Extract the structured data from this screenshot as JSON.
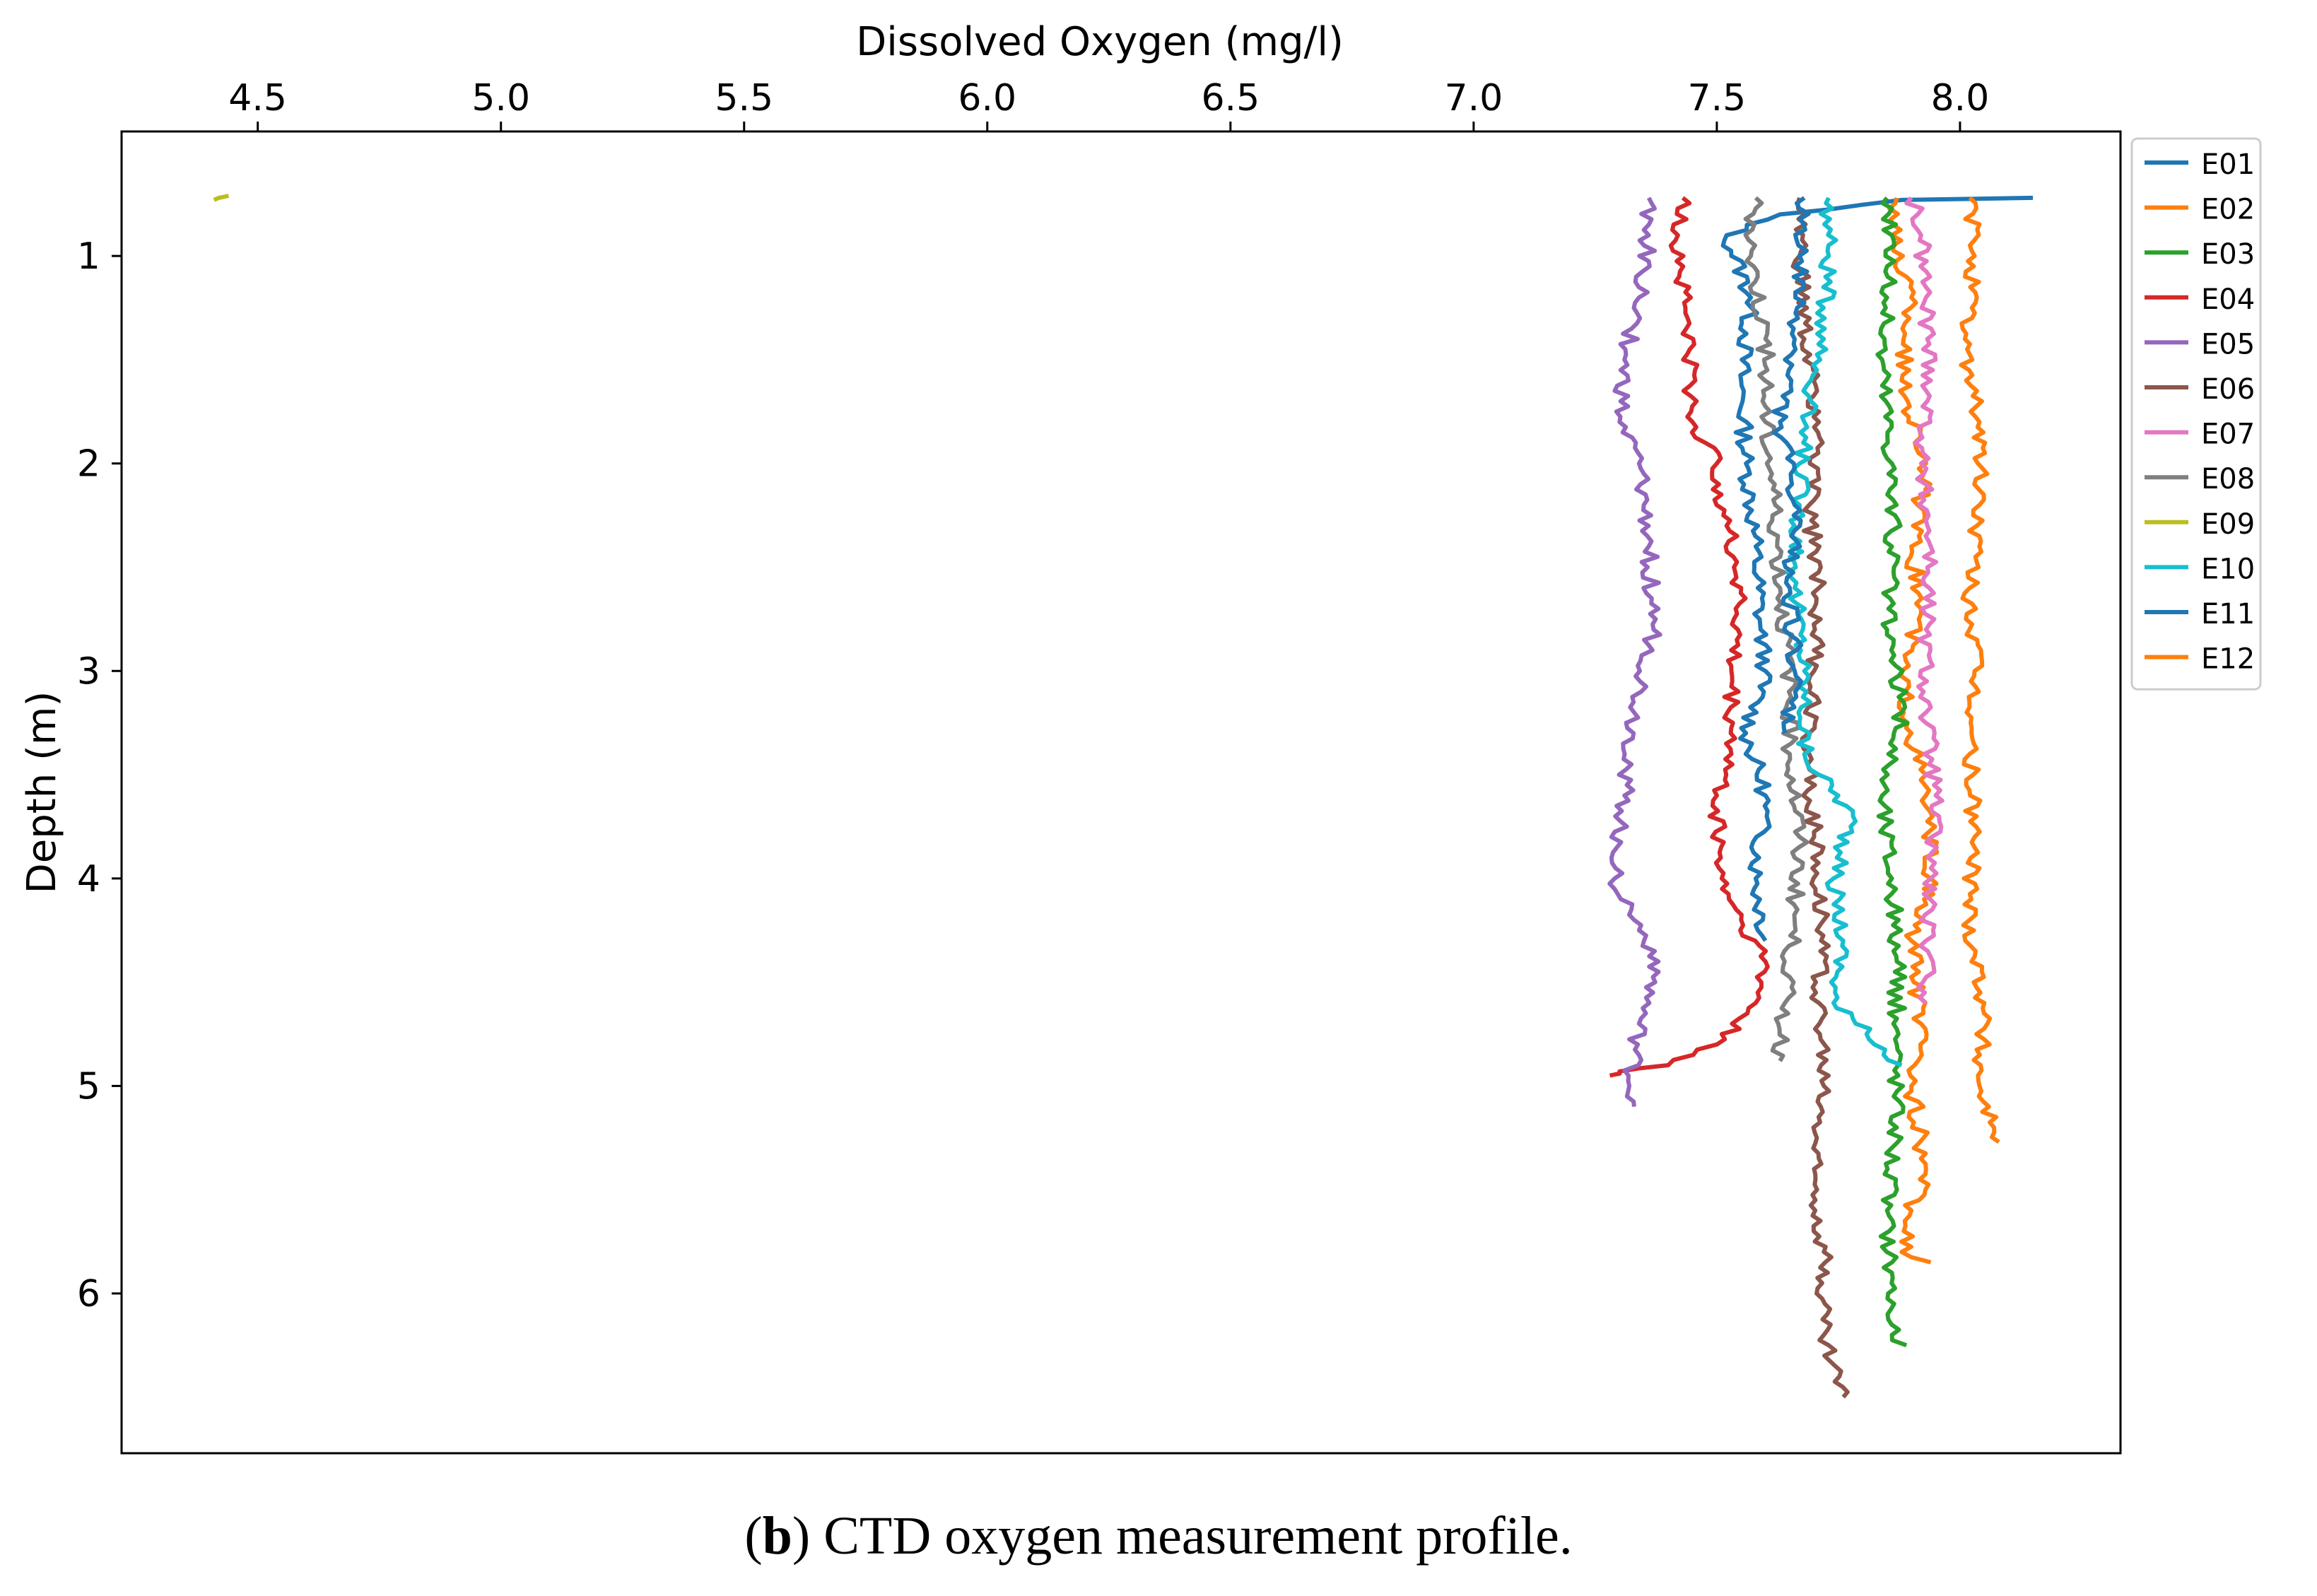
{
  "chart_data": {
    "type": "line",
    "title": "",
    "xlabel": "Dissolved Oxygen (mg/l)",
    "ylabel": "Depth (m)",
    "x_axis_position": "top",
    "y_axis_inverted": true,
    "xlim": [
      4.22,
      8.33
    ],
    "ylim": [
      6.77,
      0.4
    ],
    "xticks": [
      4.5,
      5.0,
      5.5,
      6.0,
      6.5,
      7.0,
      7.5,
      8.0
    ],
    "xtick_labels": [
      "4.5",
      "5.0",
      "5.5",
      "6.0",
      "6.5",
      "7.0",
      "7.5",
      "8.0"
    ],
    "yticks": [
      1,
      2,
      3,
      4,
      5,
      6
    ],
    "ytick_labels": [
      "1",
      "2",
      "3",
      "4",
      "5",
      "6"
    ],
    "grid": false,
    "legend_position": "outside-top-right",
    "series": [
      {
        "name": "E01",
        "color": "#1f77b4",
        "depth": [
          0.72,
          0.73,
          0.8,
          0.9,
          1.2,
          1.6,
          2.0,
          2.4,
          2.8,
          3.0,
          3.3,
          3.6,
          4.0,
          4.3
        ],
        "values": [
          8.15,
          7.88,
          7.63,
          7.52,
          7.57,
          7.55,
          7.56,
          7.58,
          7.59,
          7.6,
          7.56,
          7.6,
          7.58,
          7.6
        ]
      },
      {
        "name": "E02",
        "color": "#ff7f0e",
        "depth": [
          0.72,
          0.9,
          1.2,
          1.6,
          2.0,
          2.4,
          2.7,
          3.0,
          3.3,
          3.6,
          4.0,
          4.3,
          4.7,
          5.0,
          5.4,
          5.6,
          5.8,
          5.85
        ],
        "values": [
          7.87,
          7.86,
          7.9,
          7.88,
          7.93,
          7.9,
          7.92,
          7.88,
          7.9,
          7.93,
          7.94,
          7.9,
          7.92,
          7.9,
          7.93,
          7.9,
          7.88,
          7.94
        ]
      },
      {
        "name": "E03",
        "color": "#2ca02c",
        "depth": [
          0.72,
          0.9,
          1.2,
          1.5,
          2.0,
          2.4,
          2.8,
          3.2,
          3.6,
          4.0,
          4.4,
          4.8,
          5.2,
          5.6,
          5.9,
          6.2,
          6.25
        ],
        "values": [
          7.85,
          7.86,
          7.85,
          7.84,
          7.86,
          7.86,
          7.85,
          7.88,
          7.84,
          7.86,
          7.87,
          7.87,
          7.87,
          7.85,
          7.86,
          7.86,
          7.89
        ]
      },
      {
        "name": "E04",
        "color": "#d62728",
        "depth": [
          0.72,
          0.9,
          1.3,
          1.8,
          2.0,
          2.3,
          2.6,
          3.0,
          3.4,
          3.6,
          4.0,
          4.2,
          4.4,
          4.6,
          4.8,
          4.9,
          4.93,
          4.95
        ],
        "values": [
          7.43,
          7.42,
          7.44,
          7.45,
          7.5,
          7.52,
          7.55,
          7.53,
          7.53,
          7.5,
          7.51,
          7.55,
          7.6,
          7.58,
          7.5,
          7.4,
          7.3,
          7.28
        ]
      },
      {
        "name": "E05",
        "color": "#9467bd",
        "depth": [
          0.72,
          0.9,
          1.2,
          1.5,
          1.8,
          2.0,
          2.4,
          2.8,
          3.2,
          3.6,
          4.0,
          4.2,
          4.4,
          4.7,
          5.0,
          5.1
        ],
        "values": [
          7.36,
          7.36,
          7.34,
          7.31,
          7.3,
          7.34,
          7.36,
          7.37,
          7.33,
          7.31,
          7.29,
          7.33,
          7.38,
          7.34,
          7.32,
          7.33
        ]
      },
      {
        "name": "E06",
        "color": "#8c564b",
        "depth": [
          0.72,
          1.0,
          1.4,
          1.8,
          2.2,
          2.6,
          3.0,
          3.4,
          3.8,
          4.2,
          4.6,
          5.0,
          5.4,
          5.8,
          6.2,
          6.5
        ],
        "values": [
          7.67,
          7.67,
          7.68,
          7.71,
          7.69,
          7.71,
          7.7,
          7.69,
          7.7,
          7.72,
          7.71,
          7.72,
          7.7,
          7.72,
          7.72,
          7.76
        ]
      },
      {
        "name": "E07",
        "color": "#e377c2",
        "depth": [
          0.72,
          0.9,
          1.2,
          1.6,
          2.0,
          2.4,
          2.8,
          3.2,
          3.6,
          4.0,
          4.3,
          4.6
        ],
        "values": [
          7.9,
          7.92,
          7.93,
          7.94,
          7.92,
          7.94,
          7.93,
          7.93,
          7.95,
          7.94,
          7.93,
          7.93
        ]
      },
      {
        "name": "E08",
        "color": "#7f7f7f",
        "depth": [
          0.72,
          1.0,
          1.4,
          1.8,
          2.2,
          2.6,
          3.0,
          3.4,
          3.8,
          4.2,
          4.6,
          4.88
        ],
        "values": [
          7.58,
          7.57,
          7.6,
          7.6,
          7.62,
          7.63,
          7.65,
          7.65,
          7.67,
          7.66,
          7.64,
          7.63
        ]
      },
      {
        "name": "E09",
        "color": "#bcbd22",
        "depth": [
          0.71,
          0.72,
          0.73
        ],
        "values": [
          4.44,
          4.42,
          4.41
        ]
      },
      {
        "name": "E10",
        "color": "#17becf",
        "depth": [
          0.72,
          1.0,
          1.4,
          1.8,
          2.2,
          2.6,
          3.0,
          3.4,
          3.7,
          4.0,
          4.3,
          4.6,
          4.9
        ],
        "values": [
          7.73,
          7.73,
          7.72,
          7.68,
          7.67,
          7.66,
          7.68,
          7.68,
          7.78,
          7.74,
          7.76,
          7.74,
          7.88
        ]
      },
      {
        "name": "E11",
        "color": "#1f77b4",
        "depth": [
          0.72,
          1.0,
          1.4,
          1.8,
          2.2,
          2.6,
          3.0,
          3.3
        ],
        "values": [
          7.68,
          7.67,
          7.66,
          7.63,
          7.66,
          7.65,
          7.66,
          7.64
        ]
      },
      {
        "name": "E12",
        "color": "#ff7f0e",
        "depth": [
          0.72,
          1.0,
          1.4,
          1.8,
          2.2,
          2.6,
          3.0,
          3.4,
          3.8,
          4.2,
          4.6,
          5.0,
          5.2,
          5.27
        ],
        "values": [
          8.02,
          8.03,
          8.01,
          8.04,
          8.04,
          8.02,
          8.03,
          8.02,
          8.03,
          8.02,
          8.05,
          8.04,
          8.07,
          8.08
        ]
      }
    ]
  },
  "caption": {
    "label": "b",
    "text": ") CTD oxygen measurement profile."
  }
}
